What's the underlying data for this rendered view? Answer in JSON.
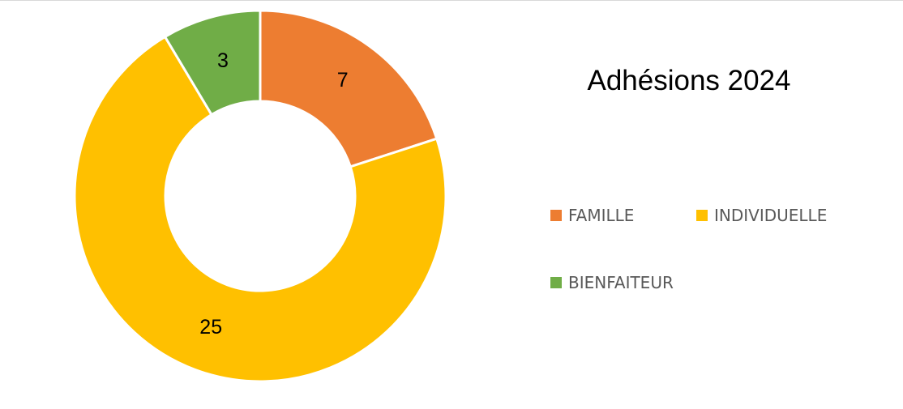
{
  "chart_data": {
    "type": "pie",
    "title": "Adhésions 2024",
    "categories": [
      "FAMILLE",
      "INDIVIDUELLE",
      "BIENFAITEUR"
    ],
    "values": [
      7,
      25,
      3
    ],
    "data_labels": [
      "7",
      "25",
      "3"
    ],
    "colors": [
      "#ED7D31",
      "#FFC000",
      "#70AD47"
    ],
    "donut": true,
    "legend_position": "right"
  }
}
